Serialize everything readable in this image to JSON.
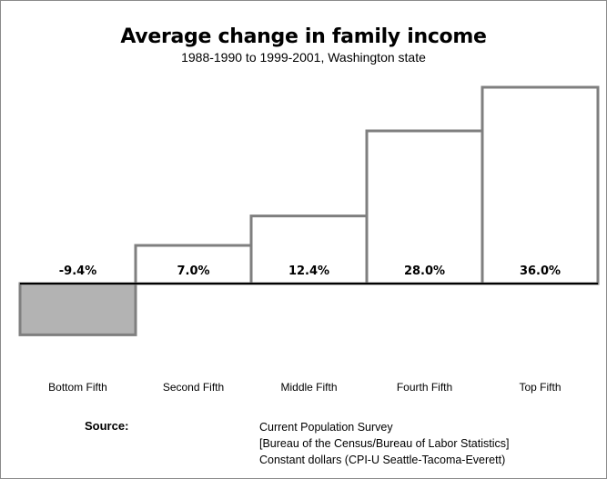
{
  "chart_data": {
    "type": "bar",
    "title": "Average change in family income",
    "subtitle": "1988-1990 to 1999-2001, Washington state",
    "categories": [
      "Bottom Fifth",
      "Second Fifth",
      "Middle Fifth",
      "Fourth Fifth",
      "Top Fifth"
    ],
    "values": [
      -9.4,
      7.0,
      12.4,
      28.0,
      36.0
    ],
    "value_labels": [
      "-9.4%",
      "7.0%",
      "12.4%",
      "28.0%",
      "36.0%"
    ],
    "ylim": [
      -9.4,
      36.0
    ],
    "grid": false,
    "colors": {
      "negative_fill": "#b3b3b3",
      "positive_fill": "#ffffff",
      "stroke": "#7f7f7f"
    }
  },
  "source": {
    "label": "Source:",
    "lines": [
      "Current Population Survey",
      "[Bureau of the Census/Bureau of Labor Statistics]",
      "Constant dollars (CPI-U Seattle-Tacoma-Everett)"
    ]
  }
}
